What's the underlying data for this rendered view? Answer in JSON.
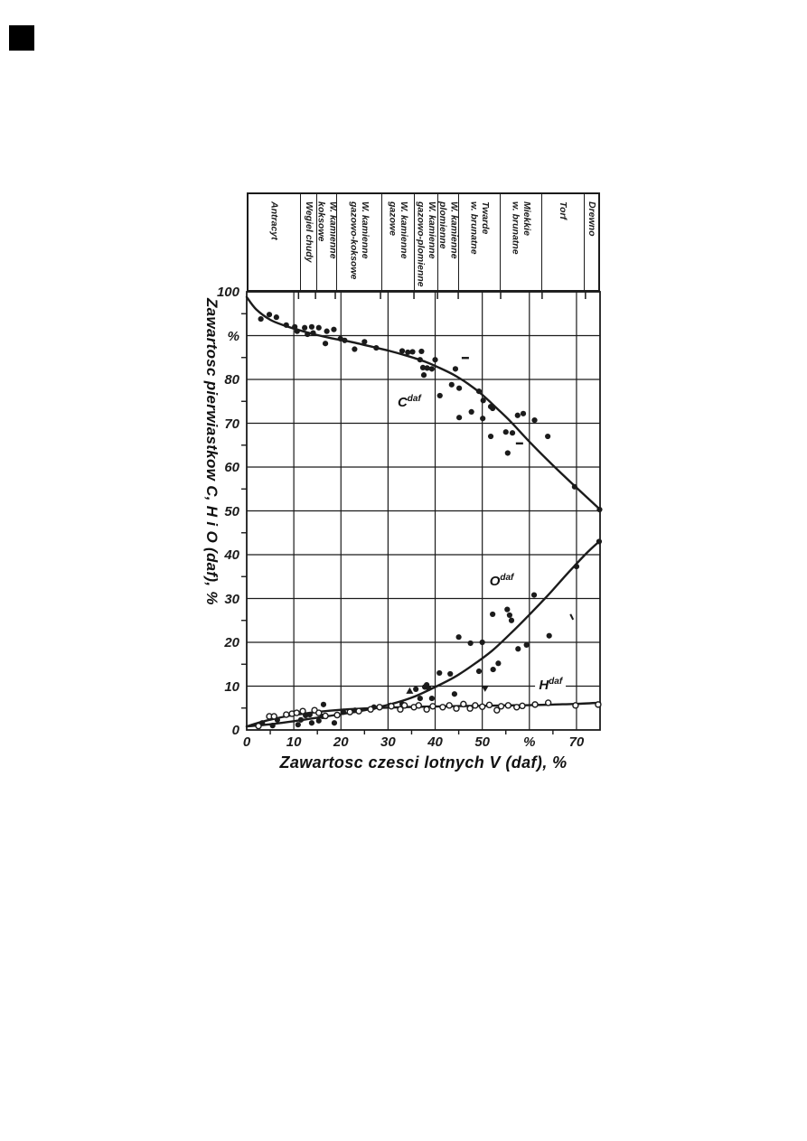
{
  "page": {
    "background": "#ffffff",
    "ink_color": "#1b1b1b",
    "corner_mark_color": "#000000"
  },
  "chart_data": {
    "type": "line",
    "title": "",
    "xlabel": "Zawartosc czesci lotnych V (daf), %",
    "ylabel": "Zawartosc pierwiastkow C, H i O (daf), %",
    "xlim": [
      0,
      75
    ],
    "ylim": [
      0,
      100
    ],
    "grid": true,
    "x_ticks": [
      {
        "v": 0,
        "t": "0"
      },
      {
        "v": 10,
        "t": "10"
      },
      {
        "v": 20,
        "t": "20"
      },
      {
        "v": 30,
        "t": "30"
      },
      {
        "v": 40,
        "t": "40"
      },
      {
        "v": 50,
        "t": "50"
      },
      {
        "v": 60,
        "t": "%"
      },
      {
        "v": 70,
        "t": "70"
      }
    ],
    "y_ticks": [
      {
        "v": 100,
        "t": "100"
      },
      {
        "v": 90,
        "t": "%"
      },
      {
        "v": 80,
        "t": "80"
      },
      {
        "v": 70,
        "t": "70"
      },
      {
        "v": 60,
        "t": "60"
      },
      {
        "v": 50,
        "t": "50"
      },
      {
        "v": 40,
        "t": "40"
      },
      {
        "v": 30,
        "t": "30"
      },
      {
        "v": 20,
        "t": "20"
      },
      {
        "v": 10,
        "t": "10"
      },
      {
        "v": 0,
        "t": "0"
      }
    ],
    "minor_tick_positions_x": [
      5,
      15,
      25,
      35,
      45,
      55,
      65
    ],
    "minor_tick_positions_y": [
      5,
      15,
      25,
      35,
      45,
      55,
      65,
      75,
      85,
      95
    ],
    "categories": [
      {
        "label": "Antracyt",
        "from": 0,
        "to": 11
      },
      {
        "label": "Wegiel chudy",
        "from": 11,
        "to": 14.6
      },
      {
        "label": "W. kamienne\nkoksowe",
        "from": 14.6,
        "to": 18.8
      },
      {
        "label": "W. kamienne\ngazowo-koksowe",
        "from": 18.8,
        "to": 28.4
      },
      {
        "label": "W. kamienne\ngazowe",
        "from": 28.4,
        "to": 35.5
      },
      {
        "label": "W. kamienne\ngazowo-plomienne",
        "from": 35.5,
        "to": 40.5
      },
      {
        "label": "W. kamienne\nplomienne",
        "from": 40.5,
        "to": 44.9
      },
      {
        "label": "Twarde\nw. brunatne",
        "from": 44.9,
        "to": 53.9
      },
      {
        "label": "Miekkie\nw. brunatne",
        "from": 53.9,
        "to": 62.7
      },
      {
        "label": "Torf",
        "from": 62.7,
        "to": 71.9
      },
      {
        "label": "Drewno",
        "from": 71.9,
        "to": 75
      }
    ],
    "series": [
      {
        "name": "C",
        "label_base": "C",
        "label_sup": "daf",
        "label_pos": [
          34.5,
          74.8
        ],
        "label_bg": false,
        "marker": "dot",
        "curve": [
          [
            0,
            98.8
          ],
          [
            2,
            96
          ],
          [
            5,
            93.6
          ],
          [
            8,
            92.3
          ],
          [
            10,
            91.6
          ],
          [
            14,
            90.4
          ],
          [
            18,
            89.4
          ],
          [
            22,
            88.6
          ],
          [
            26,
            87.6
          ],
          [
            30,
            86.6
          ],
          [
            34,
            85.4
          ],
          [
            38,
            84
          ],
          [
            41,
            82.6
          ],
          [
            44,
            81
          ],
          [
            47,
            79
          ],
          [
            50,
            76.5
          ],
          [
            53,
            73.5
          ],
          [
            56,
            70.4
          ],
          [
            60,
            65.8
          ],
          [
            65,
            60.4
          ],
          [
            70,
            55.3
          ],
          [
            75,
            50.3
          ]
        ],
        "points": [
          [
            3,
            93.8
          ],
          [
            4.8,
            94.8
          ],
          [
            6.3,
            94.2
          ],
          [
            8.4,
            92.4
          ],
          [
            10.2,
            92
          ],
          [
            10.7,
            91
          ],
          [
            12.3,
            91.8
          ],
          [
            12.9,
            90.3
          ],
          [
            13.8,
            92
          ],
          [
            14.1,
            90.6
          ],
          [
            15.3,
            91.8
          ],
          [
            16.7,
            88.2
          ],
          [
            17,
            91
          ],
          [
            18.5,
            91.4
          ],
          [
            19.9,
            89.3
          ],
          [
            20.8,
            88.9
          ],
          [
            22.9,
            86.9
          ],
          [
            25,
            88.6
          ],
          [
            27.5,
            87.2
          ],
          [
            33,
            86.5
          ],
          [
            34.2,
            86.2
          ],
          [
            35.2,
            86.3
          ],
          [
            37.1,
            86.4
          ],
          [
            36.8,
            84.5
          ],
          [
            37.4,
            82.7
          ],
          [
            38.3,
            82.6
          ],
          [
            37.6,
            81
          ],
          [
            39.3,
            82.4
          ],
          [
            40,
            84.5
          ],
          [
            41,
            76.3
          ],
          [
            43.5,
            78.8
          ],
          [
            44.3,
            82.4
          ],
          [
            45.1,
            78
          ],
          [
            45.1,
            71.3
          ],
          [
            47.7,
            72.6
          ],
          [
            49.3,
            77.3
          ],
          [
            50.2,
            75.2
          ],
          [
            50.1,
            71.1
          ],
          [
            51.8,
            73.8
          ],
          [
            51.8,
            67
          ],
          [
            52.2,
            73.4
          ],
          [
            55,
            68
          ],
          [
            55.4,
            63.2
          ],
          [
            56.4,
            67.8
          ],
          [
            57.5,
            71.8
          ],
          [
            58.7,
            72.2
          ],
          [
            61.1,
            70.7
          ],
          [
            63.9,
            67
          ],
          [
            69.6,
            55.5
          ],
          [
            74.9,
            50.3
          ]
        ]
      },
      {
        "name": "O",
        "label_base": "O",
        "label_sup": "daf",
        "label_pos": [
          54.1,
          34
        ],
        "label_bg": false,
        "marker": "dot",
        "curve": [
          [
            0,
            0.8
          ],
          [
            5,
            1.3
          ],
          [
            10,
            2
          ],
          [
            15,
            2.8
          ],
          [
            20,
            3.6
          ],
          [
            25,
            4.5
          ],
          [
            28,
            5.2
          ],
          [
            32,
            6.3
          ],
          [
            36,
            7.8
          ],
          [
            40,
            9.8
          ],
          [
            44,
            12
          ],
          [
            48,
            14.8
          ],
          [
            52,
            18
          ],
          [
            56,
            22
          ],
          [
            60,
            26.3
          ],
          [
            64,
            30.8
          ],
          [
            68,
            35.6
          ],
          [
            72,
            40.2
          ],
          [
            75,
            43.2
          ]
        ],
        "points": [
          [
            3.3,
            1.6
          ],
          [
            5.5,
            1
          ],
          [
            6.5,
            2.3
          ],
          [
            10.9,
            1.2
          ],
          [
            11.5,
            2.3
          ],
          [
            12.5,
            3.3
          ],
          [
            13.4,
            3.5
          ],
          [
            13.8,
            1.6
          ],
          [
            15.3,
            2.1
          ],
          [
            16.1,
            3.1
          ],
          [
            16.3,
            5.8
          ],
          [
            18.6,
            1.6
          ],
          [
            20.5,
            4.1
          ],
          [
            23,
            4.5
          ],
          [
            27,
            5.2
          ],
          [
            30.5,
            5.6
          ],
          [
            33,
            5.9
          ],
          [
            35.9,
            9.3
          ],
          [
            36.8,
            7.2
          ],
          [
            37.8,
            9.8
          ],
          [
            38.2,
            10.3
          ],
          [
            38.6,
            9.5
          ],
          [
            39.3,
            7.2
          ],
          [
            40.9,
            13
          ],
          [
            43.2,
            12.8
          ],
          [
            44.1,
            8.2
          ],
          [
            45,
            21.2
          ],
          [
            47.5,
            19.8
          ],
          [
            49.3,
            13.4
          ],
          [
            50,
            20
          ],
          [
            52.2,
            26.4
          ],
          [
            52.3,
            13.8
          ],
          [
            53.4,
            15.2
          ],
          [
            55.3,
            27.5
          ],
          [
            55.8,
            26.2
          ],
          [
            56.2,
            25
          ],
          [
            57.6,
            18.5
          ],
          [
            59.4,
            19.4
          ],
          [
            61,
            30.8
          ],
          [
            64.2,
            21.5
          ],
          [
            70,
            37.3
          ],
          [
            74.8,
            43
          ]
        ]
      },
      {
        "name": "H",
        "label_base": "H",
        "label_sup": "daf",
        "label_pos": [
          64.5,
          10.4
        ],
        "label_bg": true,
        "marker": "circle",
        "curve": [
          [
            0,
            0.8
          ],
          [
            3,
            1.8
          ],
          [
            6,
            2.6
          ],
          [
            10,
            3.4
          ],
          [
            15,
            4.1
          ],
          [
            20,
            4.6
          ],
          [
            25,
            4.9
          ],
          [
            30,
            5.1
          ],
          [
            35,
            5.25
          ],
          [
            40,
            5.35
          ],
          [
            45,
            5.45
          ],
          [
            50,
            5.5
          ],
          [
            55,
            5.6
          ],
          [
            60,
            5.65
          ],
          [
            65,
            5.8
          ],
          [
            70,
            5.95
          ],
          [
            75,
            6.2
          ]
        ],
        "points": [
          [
            2.5,
            0.9
          ],
          [
            4.8,
            3.1
          ],
          [
            5.8,
            3.1
          ],
          [
            8.4,
            3.5
          ],
          [
            9.6,
            3.7
          ],
          [
            10.6,
            3.9
          ],
          [
            11.9,
            4.3
          ],
          [
            14.4,
            4.5
          ],
          [
            15.3,
            3.9
          ],
          [
            16.7,
            3.2
          ],
          [
            19.2,
            3.4
          ],
          [
            21.9,
            4.1
          ],
          [
            23.8,
            4.3
          ],
          [
            26.3,
            4.7
          ],
          [
            28.2,
            5.2
          ],
          [
            30.7,
            5.4
          ],
          [
            32.6,
            4.7
          ],
          [
            33.5,
            5.6
          ],
          [
            35.5,
            5.2
          ],
          [
            36.5,
            5.6
          ],
          [
            38.2,
            4.7
          ],
          [
            39.5,
            5.4
          ],
          [
            41.6,
            5.2
          ],
          [
            43,
            5.6
          ],
          [
            44.5,
            4.9
          ],
          [
            46,
            5.9
          ],
          [
            47.4,
            4.9
          ],
          [
            48.5,
            5.6
          ],
          [
            50,
            5.3
          ],
          [
            51.5,
            5.7
          ],
          [
            53.1,
            4.5
          ],
          [
            54,
            5.4
          ],
          [
            55.5,
            5.6
          ],
          [
            57.3,
            5.2
          ],
          [
            58.5,
            5.5
          ],
          [
            61.2,
            5.8
          ],
          [
            64,
            6.2
          ],
          [
            69.8,
            5.6
          ],
          [
            74.6,
            5.8
          ]
        ]
      }
    ],
    "special_marks": [
      {
        "type": "dash",
        "at": [
          46.4,
          84.9
        ]
      },
      {
        "type": "dash",
        "at": [
          57.9,
          65.4
        ]
      },
      {
        "type": "tick",
        "at": [
          69,
          25.8
        ]
      },
      {
        "type": "triangle-up",
        "at": [
          34.6,
          8.9
        ]
      },
      {
        "type": "triangle-down",
        "at": [
          50.6,
          9.5
        ]
      }
    ]
  }
}
